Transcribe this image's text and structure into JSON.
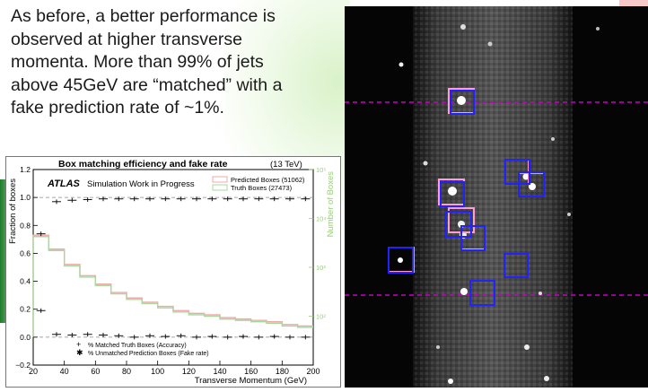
{
  "slide": {
    "text_lines": [
      "As before, a better performance is",
      "observed at higher transverse",
      "momenta. More than 99% of jets",
      "above 45GeV are “matched” with a",
      "fake prediction rate of ~1%."
    ]
  },
  "colors": {
    "accuracy": "#111111",
    "fake": "#111111",
    "predicted_hist": "#f0a8a8",
    "truth_hist": "#a8d8a0",
    "right_axis": "#9acd7a",
    "pred_box": "#ff9fd0",
    "truth_box": "#2222ff",
    "guide_line": "#c800c8"
  },
  "chart_data": {
    "type": "line",
    "title": "Box matching efficiency and fake rate",
    "energy_label": "(13 TeV)",
    "atlas_label": "ATLAS",
    "atlas_sublabel": "Simulation Work in Progress",
    "xlabel": "Transverse Momentum (GeV)",
    "ylabel": "Fraction of boxes",
    "ylabel_right": "Number of Boxes",
    "xlim": [
      20,
      200
    ],
    "ylim": [
      -0.2,
      1.2
    ],
    "x_ticks": [
      "20",
      "40",
      "60",
      "80",
      "100",
      "120",
      "140",
      "160",
      "180",
      "200"
    ],
    "y_ticks": [
      "−0.2",
      "0.0",
      "0.2",
      "0.4",
      "0.6",
      "0.8",
      "1.0",
      "1.2"
    ],
    "right_ticks": [
      "10⁵",
      "10⁴",
      "10³",
      "10²"
    ],
    "right_tick_values": [
      5,
      4,
      3,
      2
    ],
    "right_log_range": [
      1,
      5
    ],
    "legend_top": [
      {
        "label": "Predicted Boxes (51062)",
        "color": "#f0a8a8"
      },
      {
        "label": "Truth Boxes (27473)",
        "color": "#a8d8a0"
      }
    ],
    "legend_bottom": [
      {
        "label": "% Matched Truth Boxes (Accuracy)",
        "marker": "plus"
      },
      {
        "label": "% Unmatched Prediction Boxes (Fake rate)",
        "marker": "star"
      }
    ],
    "reference_lines": [
      1.0,
      0.0
    ],
    "series": [
      {
        "name": "% Matched Truth Boxes (Accuracy)",
        "x": [
          25,
          35,
          45,
          55,
          65,
          75,
          85,
          95,
          105,
          115,
          125,
          135,
          145,
          155,
          165,
          175,
          185,
          195
        ],
        "y": [
          0.74,
          0.97,
          0.98,
          0.985,
          0.99,
          0.99,
          0.99,
          0.99,
          0.99,
          0.99,
          0.99,
          0.99,
          0.99,
          0.99,
          0.99,
          0.99,
          0.99,
          0.99
        ]
      },
      {
        "name": "% Unmatched Prediction Boxes (Fake rate)",
        "x": [
          25,
          35,
          45,
          55,
          65,
          75,
          85,
          95,
          105,
          115,
          125,
          135,
          145,
          155,
          165,
          175,
          185,
          195
        ],
        "y": [
          0.19,
          0.02,
          0.015,
          0.02,
          0.015,
          0.01,
          0.0,
          0.01,
          0.005,
          0.01,
          0.0,
          0.005,
          0.0,
          0.005,
          0.0,
          0.005,
          0.0,
          0.0
        ]
      }
    ],
    "histograms": [
      {
        "name": "Predicted Boxes (51062)",
        "edges": [
          20,
          30,
          40,
          50,
          60,
          70,
          80,
          90,
          100,
          110,
          120,
          130,
          140,
          150,
          160,
          170,
          180,
          190,
          200
        ],
        "frac": [
          0.73,
          0.63,
          0.52,
          0.44,
          0.38,
          0.32,
          0.28,
          0.25,
          0.22,
          0.19,
          0.17,
          0.16,
          0.14,
          0.13,
          0.12,
          0.11,
          0.09,
          0.08
        ]
      },
      {
        "name": "Truth Boxes (27473)",
        "edges": [
          20,
          30,
          40,
          50,
          60,
          70,
          80,
          90,
          100,
          110,
          120,
          130,
          140,
          150,
          160,
          170,
          180,
          190,
          200
        ],
        "frac": [
          0.72,
          0.62,
          0.51,
          0.43,
          0.37,
          0.31,
          0.27,
          0.24,
          0.21,
          0.18,
          0.16,
          0.15,
          0.13,
          0.12,
          0.11,
          0.1,
          0.08,
          0.07
        ]
      }
    ]
  }
}
